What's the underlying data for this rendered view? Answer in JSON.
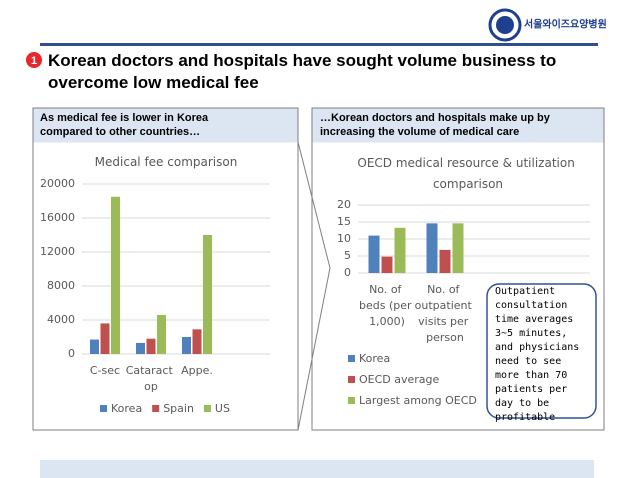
{
  "header": {
    "logo_text": "서울와이즈요양병원",
    "badge": "1",
    "title": "Korean doctors and hospitals have sought volume business to overcome low medical fee"
  },
  "left_panel": {
    "heading": "As medical fee is lower in Korea compared to other countries…"
  },
  "right_panel": {
    "heading": "…Korean doctors and hospitals make up by increasing the volume of medical care",
    "callout": "Outpatient consultation time averages 3~5 minutes, and physicians need to see more than 70 patients per day to be profitable"
  },
  "chart_data": [
    {
      "type": "bar",
      "title": "Medical fee comparison",
      "categories": [
        "C-sec",
        "Cataract op",
        "Appe."
      ],
      "series": [
        {
          "name": "Korea",
          "color": "#4f81bd",
          "values": [
            1700,
            1300,
            2000
          ]
        },
        {
          "name": "Spain",
          "color": "#c0504d",
          "values": [
            3600,
            1800,
            2900
          ]
        },
        {
          "name": "US",
          "color": "#9bbb59",
          "values": [
            18500,
            4600,
            14000
          ]
        }
      ],
      "ylim": [
        0,
        20000
      ],
      "yticks": [
        0,
        4000,
        8000,
        12000,
        16000,
        20000
      ],
      "grid": true,
      "legend": "bottom"
    },
    {
      "type": "bar",
      "title": "OECD medical resource & utilization comparison",
      "categories": [
        "No. of beds (per 1,000)",
        "No. of outpatient visits per person"
      ],
      "series": [
        {
          "name": "Korea",
          "color": "#4f81bd",
          "values": [
            11,
            14.6
          ]
        },
        {
          "name": "OECD average",
          "color": "#c0504d",
          "values": [
            4.8,
            6.8
          ]
        },
        {
          "name": "Largest among OECD",
          "color": "#9bbb59",
          "values": [
            13.3,
            14.6
          ]
        }
      ],
      "ylim": [
        0,
        20
      ],
      "yticks": [
        0,
        5,
        10,
        15,
        20
      ],
      "grid": true,
      "legend": "left"
    }
  ]
}
